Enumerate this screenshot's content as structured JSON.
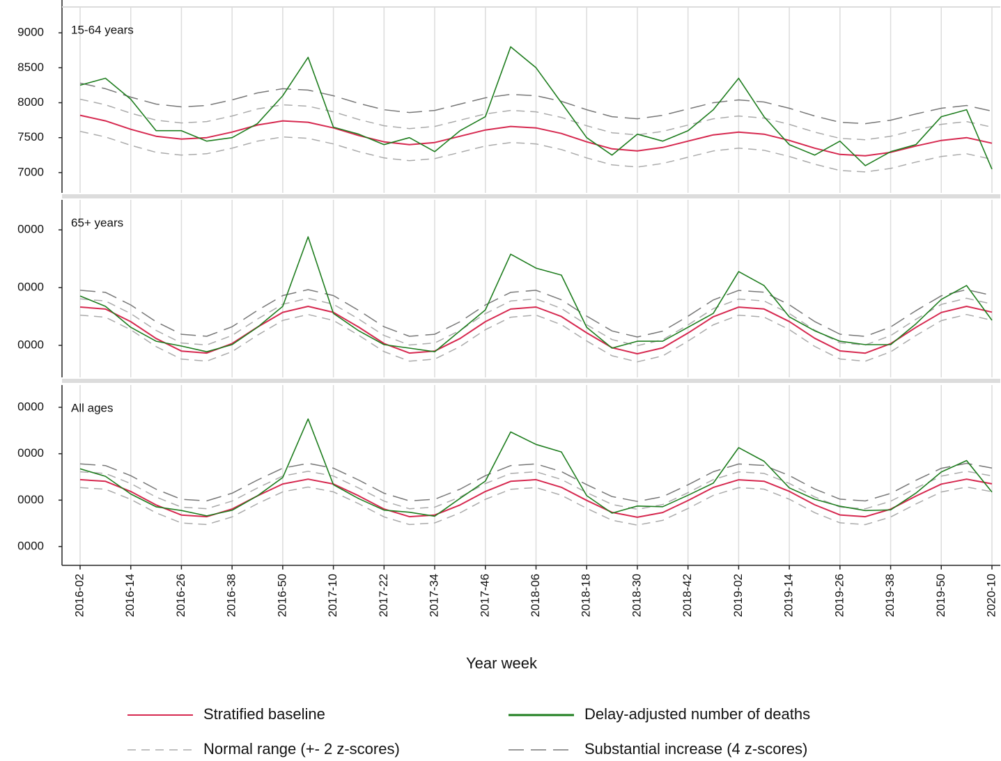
{
  "chart_data": {
    "type": "line",
    "x_label": "Year week",
    "categories": [
      "2016-02",
      null,
      "2016-14",
      null,
      "2016-26",
      null,
      "2016-38",
      null,
      "2016-50",
      null,
      "2017-10",
      null,
      "2017-22",
      null,
      "2017-34",
      null,
      "2017-46",
      null,
      "2018-06",
      null,
      "2018-18",
      null,
      "2018-30",
      null,
      "2018-42",
      null,
      "2019-02",
      null,
      "2019-14",
      null,
      "2019-26",
      null,
      "2019-38",
      null,
      "2019-50",
      null,
      "2020-10"
    ],
    "series": [
      {
        "name": "Stratified baseline",
        "color": "#d6284f",
        "dash": "solid",
        "width": 2
      },
      {
        "name": "Delay-adjusted number of deaths",
        "color": "#1e7d1e",
        "dash": "solid",
        "width": 1.6
      },
      {
        "name": "Normal range (+- 2 z-scores)",
        "color": "#aaaaaa",
        "dash": "dashed",
        "width": 1.5
      },
      {
        "name": "Substantial increase (4 z-scores)",
        "color": "#777777",
        "dash": "long-dashed",
        "width": 1.5
      }
    ],
    "panels": [
      {
        "title": "15-64 years",
        "ylim": [
          6710,
          9370
        ],
        "yticks": [
          7000,
          7500,
          8000,
          8500,
          9000
        ],
        "series": [
          {
            "values": [
              7820,
              7740,
              7620,
              7520,
              7480,
              7500,
              7580,
              7680,
              7740,
              7720,
              7640,
              7530,
              7440,
              7400,
              7430,
              7520,
              7610,
              7660,
              7640,
              7560,
              7440,
              7340,
              7310,
              7360,
              7450,
              7540,
              7580,
              7550,
              7460,
              7350,
              7260,
              7240,
              7290,
              7380,
              7460,
              7500,
              7420
            ]
          },
          {
            "values": [
              8250,
              8350,
              8050,
              7600,
              7600,
              7450,
              7500,
              7700,
              8100,
              8650,
              7650,
              7550,
              7400,
              7500,
              7300,
              7600,
              7800,
              8800,
              8500,
              8000,
              7500,
              7250,
              7550,
              7450,
              7600,
              7900,
              8350,
              7800,
              7400,
              7250,
              7450,
              7100,
              7300,
              7400,
              7800,
              7900,
              7050
            ]
          },
          {
            "values": [
              8050,
              7970,
              7850,
              7750,
              7710,
              7730,
              7810,
              7910,
              7970,
              7950,
              7870,
              7760,
              7670,
              7630,
              7660,
              7750,
              7840,
              7890,
              7870,
              7790,
              7670,
              7570,
              7540,
              7590,
              7680,
              7770,
              7810,
              7780,
              7690,
              7580,
              7490,
              7470,
              7520,
              7610,
              7690,
              7730,
              7650
            ],
            "lower": [
              7590,
              7510,
              7390,
              7290,
              7250,
              7270,
              7350,
              7450,
              7510,
              7490,
              7410,
              7300,
              7210,
              7170,
              7200,
              7290,
              7380,
              7430,
              7410,
              7330,
              7210,
              7110,
              7080,
              7130,
              7220,
              7310,
              7350,
              7320,
              7230,
              7120,
              7030,
              7010,
              7060,
              7150,
              7230,
              7270,
              7190
            ]
          },
          {
            "values": [
              8280,
              8200,
              8080,
              7980,
              7940,
              7960,
              8040,
              8140,
              8200,
              8180,
              8100,
              7990,
              7900,
              7860,
              7890,
              7980,
              8070,
              8120,
              8100,
              8020,
              7900,
              7800,
              7770,
              7820,
              7910,
              8000,
              8040,
              8010,
              7920,
              7810,
              7720,
              7700,
              7750,
              7840,
              7920,
              7960,
              7880
            ]
          }
        ]
      },
      {
        "title": "65+ years",
        "ylim": [
          24460,
          55200
        ],
        "yticks": [
          {
            "value": 30000,
            "label": "0000"
          },
          {
            "value": 40000,
            "label": "0000"
          },
          {
            "value": 50000,
            "label": "0000"
          }
        ],
        "series": [
          {
            "values": [
              36640,
              36280,
              34100,
              31190,
              29020,
              28670,
              30320,
              33150,
              35720,
              36750,
              35720,
              33150,
              30320,
              28670,
              29020,
              31190,
              34100,
              36280,
              36640,
              34990,
              32170,
              29600,
              28550,
              29570,
              32140,
              34960,
              36620,
              36300,
              34130,
              31230,
              29040,
              28660,
              30290,
              33110,
              35690,
              36750,
              35750
            ]
          },
          {
            "values": [
              38550,
              36750,
              33130,
              30720,
              29880,
              28900,
              30120,
              33130,
              36750,
              48800,
              35540,
              32530,
              30120,
              29520,
              28900,
              32530,
              36140,
              45780,
              43370,
              42170,
              33130,
              29520,
              30720,
              30720,
              33130,
              35540,
              42770,
              40360,
              34940,
              32530,
              30720,
              30120,
              30120,
              33730,
              37950,
              40360,
              34340
            ]
          },
          {
            "values": [
              38040,
              37680,
              35500,
              32590,
              30420,
              30070,
              31720,
              34550,
              37120,
              38150,
              37120,
              34550,
              31720,
              30070,
              30420,
              32590,
              35500,
              37680,
              38040,
              36390,
              33570,
              31000,
              29950,
              30970,
              33540,
              36360,
              38020,
              37700,
              35530,
              32630,
              30440,
              30060,
              31690,
              34510,
              37090,
              38150,
              37150
            ],
            "lower": [
              35240,
              34880,
              32700,
              29790,
              27620,
              27270,
              28920,
              31750,
              34320,
              35350,
              34320,
              31750,
              28920,
              27270,
              27620,
              29790,
              32700,
              34880,
              35240,
              33590,
              30770,
              28200,
              27150,
              28170,
              30740,
              33560,
              35220,
              34900,
              32730,
              29830,
              27640,
              27260,
              28890,
              31710,
              34290,
              35350,
              34350
            ]
          },
          {
            "values": [
              39540,
              39180,
              37000,
              34090,
              31920,
              31570,
              33220,
              36050,
              38620,
              39650,
              38620,
              36050,
              33220,
              31570,
              31920,
              34090,
              37000,
              39180,
              39540,
              37890,
              35070,
              32500,
              31450,
              32470,
              35040,
              37860,
              39520,
              39200,
              37030,
              34130,
              31940,
              31560,
              33190,
              36010,
              38590,
              39650,
              38650
            ]
          }
        ]
      },
      {
        "title": "All ages",
        "ylim": [
          35950,
          74800
        ],
        "yticks": [
          {
            "value": 40000,
            "label": "0000"
          },
          {
            "value": 50000,
            "label": "0000"
          },
          {
            "value": 60000,
            "label": "0000"
          },
          {
            "value": 70000,
            "label": "0000"
          }
        ],
        "series": [
          {
            "values": [
              54410,
              54050,
              51870,
              48960,
              46790,
              46440,
              48090,
              50920,
              53490,
              54520,
              53490,
              50920,
              48090,
              46440,
              46790,
              48960,
              51870,
              54050,
              54410,
              52760,
              49940,
              47370,
              46320,
              47340,
              49910,
              52730,
              54390,
              54070,
              51900,
              49000,
              46810,
              46430,
              48060,
              50880,
              53460,
              54520,
              53520
            ]
          },
          {
            "values": [
              56750,
              55130,
              51330,
              48570,
              47770,
              46620,
              47810,
              50920,
              54880,
              67500,
              53320,
              50320,
              47850,
              47390,
              46540,
              50380,
              54100,
              64690,
              62000,
              60380,
              50960,
              47200,
              48730,
              48580,
              51050,
              53670,
              61310,
              58380,
              52650,
              50200,
              48680,
              47750,
              47900,
              51520,
              56060,
              58530,
              51740
            ]
          },
          {
            "values": [
              56110,
              55750,
              53570,
              50660,
              48490,
              48140,
              49790,
              52620,
              55190,
              56220,
              55190,
              52620,
              49790,
              48140,
              48490,
              50660,
              53570,
              55750,
              56110,
              54460,
              51640,
              49070,
              48020,
              49040,
              51610,
              54430,
              56090,
              55770,
              53600,
              50700,
              48510,
              48130,
              49760,
              52580,
              55160,
              56220,
              55220
            ],
            "lower": [
              52710,
              52350,
              50170,
              47260,
              45090,
              44740,
              46390,
              49220,
              51790,
              52820,
              51790,
              49220,
              46390,
              44740,
              45090,
              47260,
              50170,
              52350,
              52710,
              51060,
              48240,
              45670,
              44620,
              45640,
              48210,
              51030,
              52690,
              52370,
              50200,
              47300,
              45110,
              44730,
              46360,
              49180,
              51760,
              52820,
              51820
            ]
          },
          {
            "values": [
              57810,
              57450,
              55270,
              52360,
              50190,
              49840,
              51490,
              54320,
              56890,
              57920,
              56890,
              54320,
              51490,
              49840,
              50190,
              52360,
              55270,
              57450,
              57810,
              56160,
              53340,
              50770,
              49720,
              50740,
              53310,
              56130,
              57790,
              57470,
              55300,
              52400,
              50210,
              49830,
              51460,
              54280,
              56860,
              57920,
              56920
            ]
          }
        ]
      }
    ]
  }
}
